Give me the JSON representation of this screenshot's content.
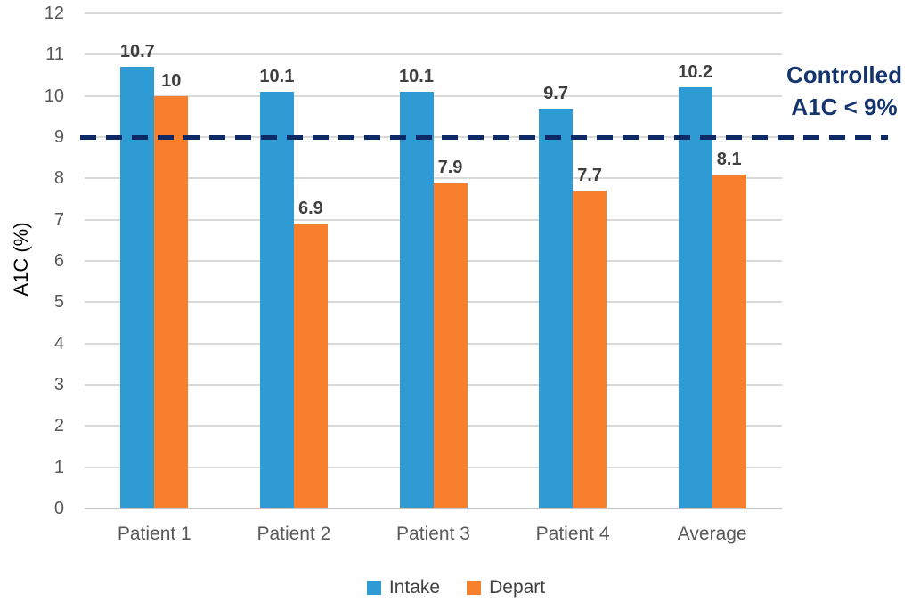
{
  "chart_data": {
    "type": "bar",
    "title": "",
    "categories": [
      "Patient 1",
      "Patient 2",
      "Patient 3",
      "Patient 4",
      "Average"
    ],
    "series": [
      {
        "name": "Intake",
        "color": "#2E9BD5",
        "values": [
          10.7,
          10.1,
          10.1,
          9.7,
          10.2
        ],
        "labels": [
          "10.7",
          "10.1",
          "10.1",
          "9.7",
          "10.2"
        ]
      },
      {
        "name": "Depart",
        "color": "#F8802C",
        "values": [
          10,
          6.9,
          7.9,
          7.7,
          8.1
        ],
        "labels": [
          "10",
          "6.9",
          "7.9",
          "7.7",
          "8.1"
        ]
      }
    ],
    "xlabel": "",
    "ylabel": "A1C (%)",
    "ylim": [
      0,
      12
    ],
    "ytick_step": 1,
    "yticks": [
      0,
      1,
      2,
      3,
      4,
      5,
      6,
      7,
      8,
      9,
      10,
      11,
      12
    ],
    "grid": true,
    "legend_position": "bottom",
    "reference_line": {
      "value": 9,
      "color": "#0E2A66",
      "label_lines": [
        "Controlled",
        "A1C < 9%"
      ],
      "label_color": "#15356E"
    }
  },
  "style_colors": {
    "gridline": "#D9D9D9",
    "axis_line": "#C4C4C4",
    "tick_label": "#595959",
    "axis_title": "#595959",
    "category_label": "#595959",
    "data_label": "#3F3F3F",
    "legend_text": "#404040"
  }
}
